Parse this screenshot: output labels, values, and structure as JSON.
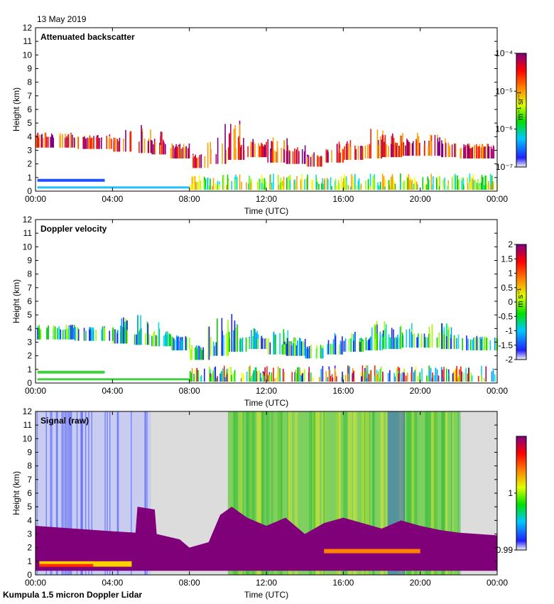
{
  "header": {
    "date": "13 May 2019"
  },
  "footer": {
    "instrument": "Kumpula 1.5 micron Doppler Lidar"
  },
  "chart_data": [
    {
      "type": "heatmap",
      "title": "Attenuated backscatter",
      "xlabel": "Time (UTC)",
      "ylabel": "Height (km)",
      "x_ticks": [
        "00:00",
        "04:00",
        "08:00",
        "12:00",
        "16:00",
        "20:00",
        "00:00"
      ],
      "y_ticks": [
        "0",
        "1",
        "2",
        "3",
        "4",
        "5",
        "6",
        "7",
        "8",
        "9",
        "10",
        "11",
        "12"
      ],
      "ylim": [
        0,
        12
      ],
      "colorbar": {
        "label": "m⁻¹ sr⁻¹",
        "scale": "log",
        "ticks": [
          "10⁻⁴",
          "10⁻⁵",
          "10⁻⁶",
          "10⁻⁷"
        ],
        "range": [
          1e-07,
          0.0001
        ]
      }
    },
    {
      "type": "heatmap",
      "title": "Doppler velocity",
      "xlabel": "Time (UTC)",
      "ylabel": "Height (km)",
      "x_ticks": [
        "00:00",
        "04:00",
        "08:00",
        "12:00",
        "16:00",
        "20:00",
        "00:00"
      ],
      "y_ticks": [
        "0",
        "1",
        "2",
        "3",
        "4",
        "5",
        "6",
        "7",
        "8",
        "9",
        "10",
        "11",
        "12"
      ],
      "ylim": [
        0,
        12
      ],
      "colorbar": {
        "label": "m s⁻¹",
        "scale": "linear",
        "ticks": [
          "2",
          "1.5",
          "1",
          "0.5",
          "0",
          "-0.5",
          "-1",
          "-1.5",
          "-2"
        ],
        "range": [
          -2,
          2
        ]
      }
    },
    {
      "type": "heatmap",
      "title": "Signal (raw)",
      "xlabel": "Time (UTC)",
      "ylabel": "Height (km)",
      "x_ticks": [
        "00:00",
        "04:00",
        "08:00",
        "12:00",
        "16:00",
        "20:00",
        "00:00"
      ],
      "y_ticks": [
        "0",
        "1",
        "2",
        "3",
        "4",
        "5",
        "6",
        "7",
        "8",
        "9",
        "10",
        "11",
        "12"
      ],
      "ylim": [
        0,
        12
      ],
      "colorbar": {
        "label": "",
        "scale": "linear",
        "ticks": [
          "1",
          "0.99"
        ],
        "range": [
          0.99,
          1.01
        ]
      }
    }
  ]
}
